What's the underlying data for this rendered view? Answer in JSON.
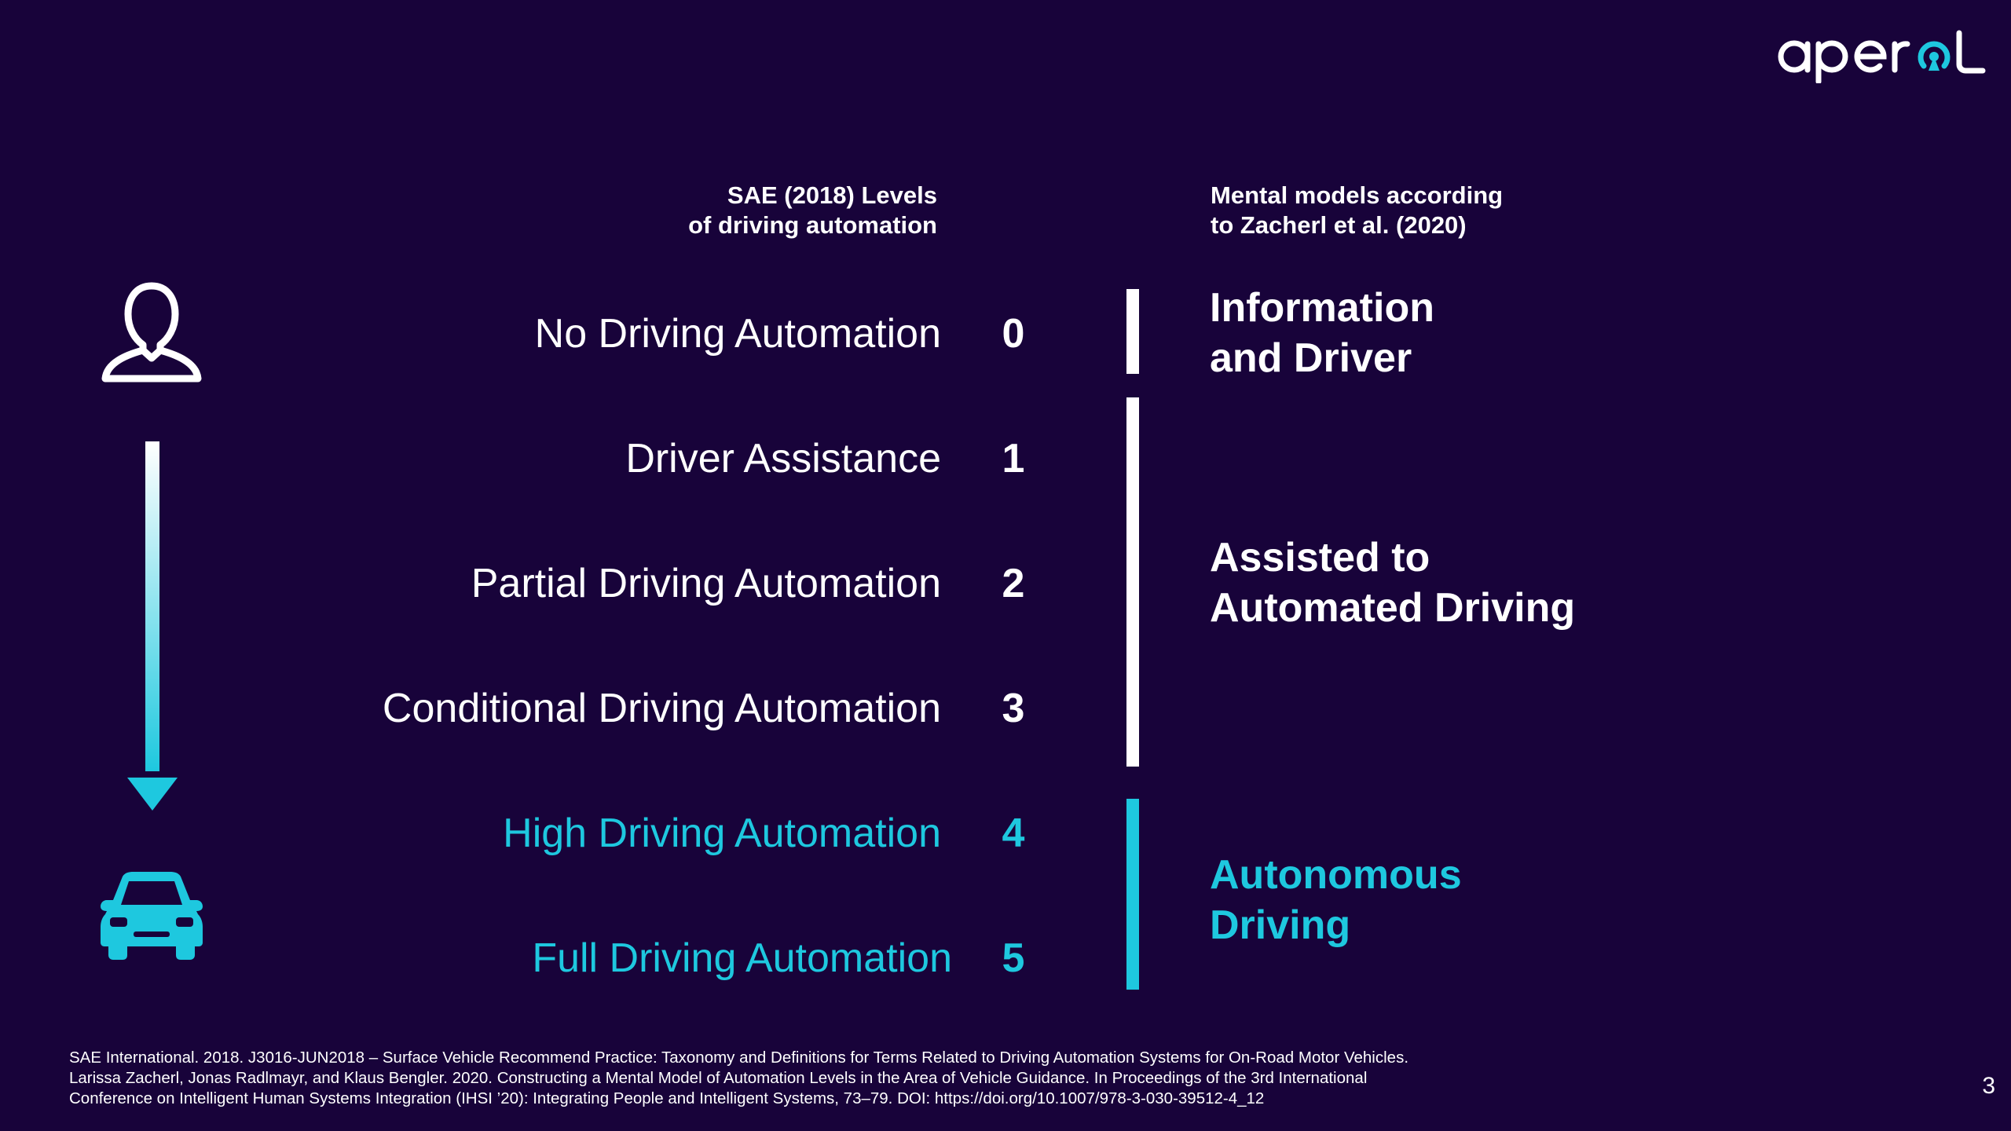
{
  "brand": {
    "logo_text": "aperol",
    "accent_color": "#1ec8df",
    "background_color": "#18033a"
  },
  "headers": {
    "sae_line1": "SAE (2018) Levels",
    "sae_line2": "of driving automation",
    "mm_line1": "Mental models according",
    "mm_line2": "to Zacherl et al. (2020)"
  },
  "levels": [
    {
      "name": "No Driving Automation",
      "number": "0"
    },
    {
      "name": "Driver Assistance",
      "number": "1"
    },
    {
      "name": "Partial Driving Automation",
      "number": "2"
    },
    {
      "name": "Conditional Driving Automation",
      "number": "3"
    },
    {
      "name": "High Driving Automation",
      "number": "4"
    },
    {
      "name": "Full Driving Automation",
      "number": "5"
    }
  ],
  "mental_models": [
    {
      "line1": "Information",
      "line2": "and Driver"
    },
    {
      "line1": "Assisted to",
      "line2": "Automated Driving"
    },
    {
      "line1": "Autonomous",
      "line2": "Driving"
    }
  ],
  "icons": {
    "top": "person-icon",
    "arrow": "arrow-down-icon",
    "bottom": "car-icon"
  },
  "footnotes": [
    "SAE International. 2018. J3016-JUN2018 – Surface Vehicle Recommend Practice: Taxonomy and Definitions for Terms Related to Driving Automation Systems for On-Road Motor Vehicles.",
    "Larissa Zacherl, Jonas Radlmayr, and Klaus Bengler. 2020. Constructing a Mental Model of Automation Levels in the Area of Vehicle Guidance. In Proceedings of the 3rd International",
    "Conference on Intelligent Human Systems Integration (IHSI ’20): Integrating People and Intelligent Systems, 73–79. DOI: https://doi.org/10.1007/978-3-030-39512-4_12"
  ],
  "page_number": "3"
}
